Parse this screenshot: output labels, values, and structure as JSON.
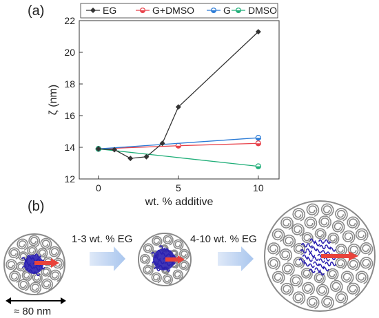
{
  "panels": {
    "a": "(a)",
    "b": "(b)"
  },
  "chart_data": {
    "type": "line",
    "xlabel": "wt. % additive",
    "ylabel": "ζ (nm)",
    "xlim": [
      -1.2,
      11.3
    ],
    "ylim": [
      12,
      22
    ],
    "xticks": [
      0,
      5,
      10
    ],
    "yticks": [
      12,
      14,
      16,
      18,
      20,
      22
    ],
    "legend_position": "top",
    "grid": false,
    "series": [
      {
        "name": "EG",
        "color": "#333333",
        "x": [
          0,
          1,
          2,
          3,
          4,
          5,
          10
        ],
        "values": [
          13.9,
          13.85,
          13.3,
          13.4,
          14.25,
          16.55,
          21.3
        ]
      },
      {
        "name": "G+DMSO",
        "color": "#e8424a",
        "x": [
          0,
          5,
          10
        ],
        "values": [
          13.9,
          14.1,
          14.25
        ]
      },
      {
        "name": "G",
        "color": "#2b7bd6",
        "x": [
          0,
          10
        ],
        "values": [
          13.9,
          14.6
        ]
      },
      {
        "name": "DMSO",
        "color": "#1fae78",
        "x": [
          0,
          10
        ],
        "values": [
          13.9,
          12.8
        ]
      }
    ]
  },
  "schematic": {
    "arrow1_label": "1-3 wt. % EG",
    "arrow2_label": "4-10 wt. % EG",
    "scale_label": "≈ 80 nm",
    "coil_color": "#8a8a8a",
    "core_color": "#2a1fb0",
    "radius_arrow_color": "#e8433b",
    "process_arrow_color": "#a9c6ee"
  }
}
